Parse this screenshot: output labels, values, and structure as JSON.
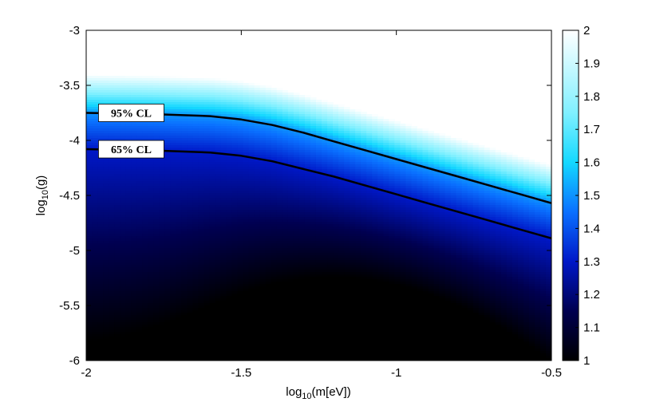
{
  "chart_data": {
    "type": "heatmap",
    "title": "",
    "xlabel": {
      "prefix": "log",
      "sub": "10",
      "suffix": "(m[eV])"
    },
    "ylabel": {
      "prefix": "log",
      "sub": "10",
      "suffix": "(g)"
    },
    "xlim": [
      -2,
      -0.5
    ],
    "ylim": [
      -6,
      -3
    ],
    "x_ticks": [
      -2,
      -1.5,
      -1,
      -0.5
    ],
    "x_tick_labels": [
      "-2",
      "-1.5",
      "-1",
      "-0.5"
    ],
    "y_ticks": [
      -6,
      -5.5,
      -5,
      -4.5,
      -4,
      -3.5,
      -3
    ],
    "y_tick_labels": [
      "-6",
      "-5.5",
      "-5",
      "-4.5",
      "-4",
      "-3.5",
      "-3"
    ],
    "colorbar": {
      "range": [
        1,
        2
      ],
      "ticks": [
        1,
        1.1,
        1.2,
        1.3,
        1.4,
        1.5,
        1.6,
        1.7,
        1.8,
        1.9,
        2
      ],
      "tick_labels": [
        "1",
        "1.1",
        "1.2",
        "1.3",
        "1.4",
        "1.5",
        "1.6",
        "1.7",
        "1.8",
        "1.9",
        "2"
      ],
      "colormap": [
        {
          "v": 1.0,
          "color": "#000000"
        },
        {
          "v": 1.15,
          "color": "#000050"
        },
        {
          "v": 1.3,
          "color": "#0018c8"
        },
        {
          "v": 1.45,
          "color": "#0a70ff"
        },
        {
          "v": 1.6,
          "color": "#14d8ff"
        },
        {
          "v": 1.75,
          "color": "#80f0ff"
        },
        {
          "v": 2.0,
          "color": "#ffffff"
        }
      ]
    },
    "series": [
      {
        "name": "95% CL",
        "x": [
          -2,
          -1.8,
          -1.6,
          -1.5,
          -1.4,
          -1.3,
          -1.2,
          -1.1,
          -1.0,
          -0.9,
          -0.8,
          -0.7,
          -0.6,
          -0.5
        ],
        "y": [
          -3.75,
          -3.76,
          -3.78,
          -3.81,
          -3.86,
          -3.93,
          -4.01,
          -4.09,
          -4.17,
          -4.25,
          -4.33,
          -4.41,
          -4.49,
          -4.57
        ]
      },
      {
        "name": "65% CL",
        "x": [
          -2,
          -1.8,
          -1.6,
          -1.5,
          -1.4,
          -1.3,
          -1.2,
          -1.1,
          -1.0,
          -0.9,
          -0.8,
          -0.7,
          -0.6,
          -0.5
        ],
        "y": [
          -4.08,
          -4.09,
          -4.11,
          -4.14,
          -4.19,
          -4.26,
          -4.33,
          -4.41,
          -4.49,
          -4.57,
          -4.65,
          -4.73,
          -4.81,
          -4.89
        ]
      }
    ],
    "contour_labels": [
      {
        "text": "95% CL",
        "x": -1.95,
        "y": -3.75
      },
      {
        "text": "65% CL",
        "x": -1.95,
        "y": -4.08
      }
    ]
  }
}
